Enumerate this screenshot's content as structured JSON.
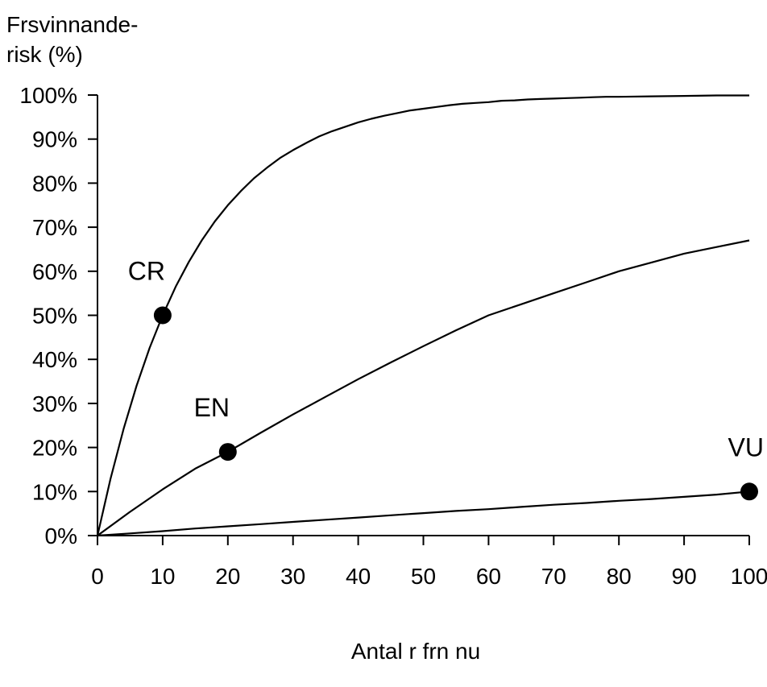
{
  "chart_data": {
    "type": "line",
    "title": "",
    "ylabel_lines": [
      "Frsvinnande-",
      "risk  (%)"
    ],
    "xlabel": "Antal r frn nu",
    "xlim": [
      0,
      100
    ],
    "ylim": [
      0,
      100
    ],
    "x_ticks": [
      0,
      10,
      20,
      30,
      40,
      50,
      60,
      70,
      80,
      90,
      100
    ],
    "x_tick_labels": [
      "0",
      "10",
      "20",
      "30",
      "40",
      "50",
      "60",
      "70",
      "80",
      "90",
      "100"
    ],
    "y_ticks": [
      0,
      10,
      20,
      30,
      40,
      50,
      60,
      70,
      80,
      90,
      100
    ],
    "y_tick_labels": [
      "0%",
      "10%",
      "20%",
      "30%",
      "40%",
      "50%",
      "60%",
      "70%",
      "80%",
      "90%",
      "100%"
    ],
    "grid": false,
    "legend": "none",
    "line_color": "#000000",
    "series": [
      {
        "name": "CR",
        "x": [
          0,
          2,
          4,
          6,
          8,
          10,
          12,
          14,
          16,
          18,
          20,
          22,
          24,
          26,
          28,
          30,
          32,
          34,
          36,
          38,
          40,
          42,
          44,
          46,
          48,
          50,
          52,
          54,
          56,
          58,
          60,
          62,
          64,
          66,
          68,
          70,
          72,
          74,
          76,
          78,
          80,
          85,
          90,
          95,
          100
        ],
        "values": [
          0,
          12.9,
          24.2,
          34.0,
          42.6,
          50.0,
          56.5,
          62.1,
          67.0,
          71.3,
          75.0,
          78.2,
          81.1,
          83.5,
          85.7,
          87.5,
          89.1,
          90.6,
          91.8,
          92.8,
          93.8,
          94.6,
          95.3,
          95.9,
          96.5,
          96.9,
          97.3,
          97.7,
          98.0,
          98.2,
          98.4,
          98.7,
          98.8,
          99.0,
          99.1,
          99.2,
          99.3,
          99.4,
          99.5,
          99.6,
          99.6,
          99.7,
          99.8,
          99.9,
          99.9
        ]
      },
      {
        "name": "EN",
        "x": [
          0,
          5,
          10,
          15,
          20,
          25,
          30,
          35,
          40,
          45,
          50,
          55,
          60,
          65,
          70,
          75,
          80,
          85,
          90,
          95,
          100
        ],
        "values": [
          0,
          5.4,
          10.5,
          15.2,
          19.0,
          23.3,
          27.5,
          31.5,
          35.5,
          39.3,
          43.0,
          46.6,
          50.0,
          52.5,
          55.0,
          57.5,
          60.0,
          62.0,
          64.0,
          65.5,
          67.0
        ]
      },
      {
        "name": "VU",
        "x": [
          0,
          5,
          10,
          15,
          20,
          25,
          30,
          35,
          40,
          45,
          50,
          55,
          60,
          65,
          70,
          75,
          80,
          85,
          90,
          95,
          100
        ],
        "values": [
          0,
          0.5,
          1.0,
          1.6,
          2.1,
          2.6,
          3.1,
          3.6,
          4.1,
          4.6,
          5.1,
          5.6,
          6.0,
          6.5,
          7.0,
          7.4,
          7.9,
          8.3,
          8.8,
          9.3,
          10.0
        ]
      }
    ],
    "annotations": [
      {
        "label": "CR",
        "x": 10,
        "y": 50
      },
      {
        "label": "EN",
        "x": 20,
        "y": 19
      },
      {
        "label": "VU",
        "x": 100,
        "y": 10
      }
    ]
  }
}
